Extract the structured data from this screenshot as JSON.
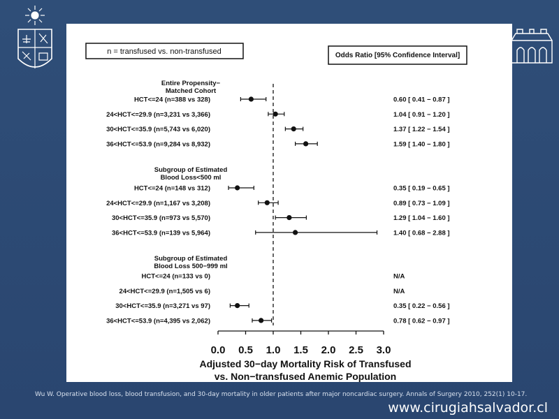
{
  "slide": {
    "citation": "Wu W. Operative blood loss, blood transfusion, and 30-day mortality in older patients after major noncardiac surgery. Annals of Surgery 2010, 252(1) 10-17.",
    "url": "www.cirugiahsalvador.cl"
  },
  "colors": {
    "background": "#2c4a73",
    "panel": "#ffffff",
    "ink": "#111111"
  },
  "chart_data": {
    "type": "forest",
    "left_box_label": "n = transfused vs. non-transfused",
    "right_box_label": "Odds Ratio [95% Confidence Interval]",
    "xlabel_line1": "Adjusted 30−day Mortality Risk of Transfused",
    "xlabel_line2": "vs. Non−transfused Anemic Population",
    "xlim": [
      0,
      3
    ],
    "xticks": [
      "0.0",
      "0.5",
      "1.0",
      "1.5",
      "2.0",
      "2.5",
      "3.0"
    ],
    "reference_line": 1.0,
    "groups": [
      {
        "title_lines": [
          "Entire Propensity−",
          "Matched Cohort"
        ],
        "rows": [
          {
            "label": "HCT<=24  (n=388 vs 328)",
            "or": 0.6,
            "lo": 0.41,
            "hi": 0.87,
            "ci_text": "0.60 [ 0.41 − 0.87 ]"
          },
          {
            "label": "24<HCT<=29.9  (n=3,231 vs 3,366)",
            "or": 1.04,
            "lo": 0.91,
            "hi": 1.2,
            "ci_text": "1.04 [ 0.91 − 1.20 ]"
          },
          {
            "label": "30<HCT<=35.9  (n=5,743 vs 6,020)",
            "or": 1.37,
            "lo": 1.22,
            "hi": 1.54,
            "ci_text": "1.37 [ 1.22 − 1.54 ]"
          },
          {
            "label": "36<HCT<=53.9  (n=9,284 vs 8,932)",
            "or": 1.59,
            "lo": 1.4,
            "hi": 1.8,
            "ci_text": "1.59 [ 1.40 − 1.80 ]"
          }
        ]
      },
      {
        "title_lines": [
          "Subgroup of  Estimated",
          "Blood Loss<500 ml"
        ],
        "rows": [
          {
            "label": "HCT<=24  (n=148 vs 312)",
            "or": 0.35,
            "lo": 0.19,
            "hi": 0.65,
            "ci_text": "0.35 [ 0.19 − 0.65 ]"
          },
          {
            "label": "24<HCT<=29.9  (n=1,167 vs 3,208)",
            "or": 0.89,
            "lo": 0.73,
            "hi": 1.09,
            "ci_text": "0.89 [ 0.73 − 1.09 ]"
          },
          {
            "label": "30<HCT<=35.9  (n=973 vs 5,570)",
            "or": 1.29,
            "lo": 1.04,
            "hi": 1.6,
            "ci_text": "1.29 [ 1.04 − 1.60 ]"
          },
          {
            "label": "36<HCT<=53.9  (n=139 vs 5,964)",
            "or": 1.4,
            "lo": 0.68,
            "hi": 2.88,
            "ci_text": "1.40 [ 0.68 − 2.88 ]"
          }
        ]
      },
      {
        "title_lines": [
          "Subgroup of Estimated",
          "Blood Loss 500−999 ml"
        ],
        "rows": [
          {
            "label": "HCT<=24  (n=133 vs 0)",
            "or": null,
            "lo": null,
            "hi": null,
            "ci_text": "N/A"
          },
          {
            "label": "24<HCT<=29.9  (n=1,505 vs 6)",
            "or": null,
            "lo": null,
            "hi": null,
            "ci_text": "N/A"
          },
          {
            "label": "30<HCT<=35.9  (n=3,271 vs 97)",
            "or": 0.35,
            "lo": 0.22,
            "hi": 0.56,
            "ci_text": "0.35 [ 0.22 − 0.56 ]"
          },
          {
            "label": "36<HCT<=53.9  (n=4,395 vs 2,062)",
            "or": 0.78,
            "lo": 0.62,
            "hi": 0.97,
            "ci_text": "0.78 [ 0.62 − 0.97 ]"
          }
        ]
      }
    ]
  }
}
